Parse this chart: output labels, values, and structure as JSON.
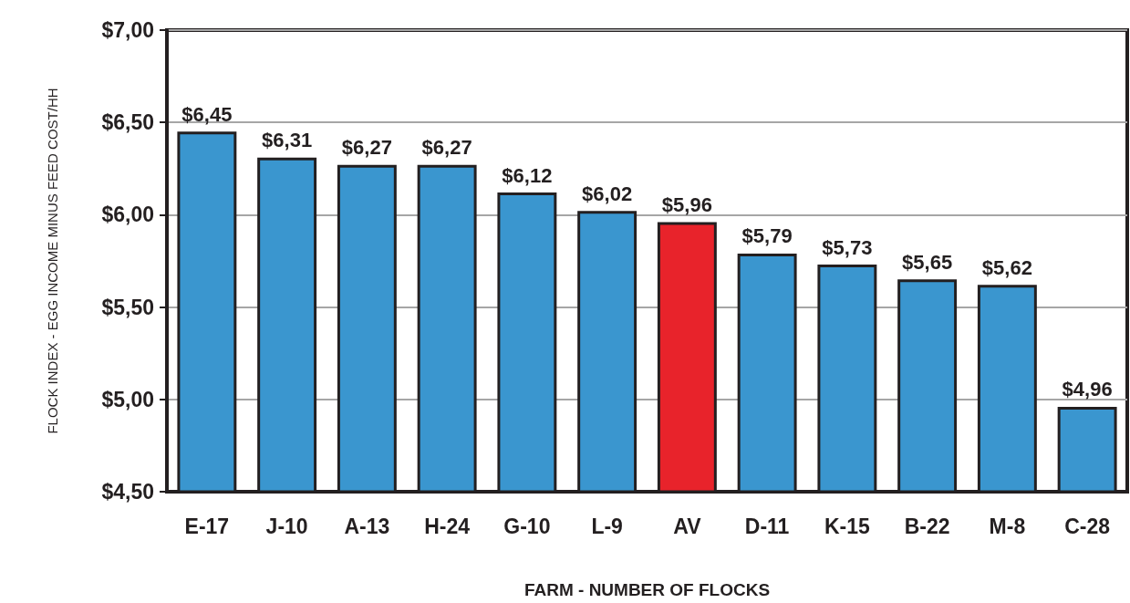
{
  "chart_data": {
    "type": "bar",
    "xlabel": "FARM - NUMBER OF FLOCKS",
    "ylabel": "FLOCK INDEX - EGG INCOME MINUS FEED COST/HH",
    "categories": [
      "E-17",
      "J-10",
      "A-13",
      "H-24",
      "G-10",
      "L-9",
      "AV",
      "D-11",
      "K-15",
      "B-22",
      "M-8",
      "C-28"
    ],
    "values": [
      6.45,
      6.31,
      6.27,
      6.27,
      6.12,
      6.02,
      5.96,
      5.79,
      5.73,
      5.65,
      5.62,
      4.96
    ],
    "value_labels": [
      "$6,45",
      "$6,31",
      "$6,27",
      "$6,27",
      "$6,12",
      "$6,02",
      "$5,96",
      "$5,79",
      "$5,73",
      "$5,65",
      "$5,62",
      "$4,96"
    ],
    "colors": [
      "#3a96cf",
      "#3a96cf",
      "#3a96cf",
      "#3a96cf",
      "#3a96cf",
      "#3a96cf",
      "#e8232b",
      "#3a96cf",
      "#3a96cf",
      "#3a96cf",
      "#3a96cf",
      "#3a96cf"
    ],
    "ylim": [
      4.5,
      7
    ],
    "yticks": [
      {
        "value": 4.5,
        "label": "$4,50"
      },
      {
        "value": 5,
        "label": "$5,00"
      },
      {
        "value": 5.5,
        "label": "$5,50"
      },
      {
        "value": 6,
        "label": "$6,00"
      },
      {
        "value": 6.5,
        "label": "$6,50"
      },
      {
        "value": 7,
        "label": "$7,00"
      }
    ],
    "grid": "y"
  }
}
